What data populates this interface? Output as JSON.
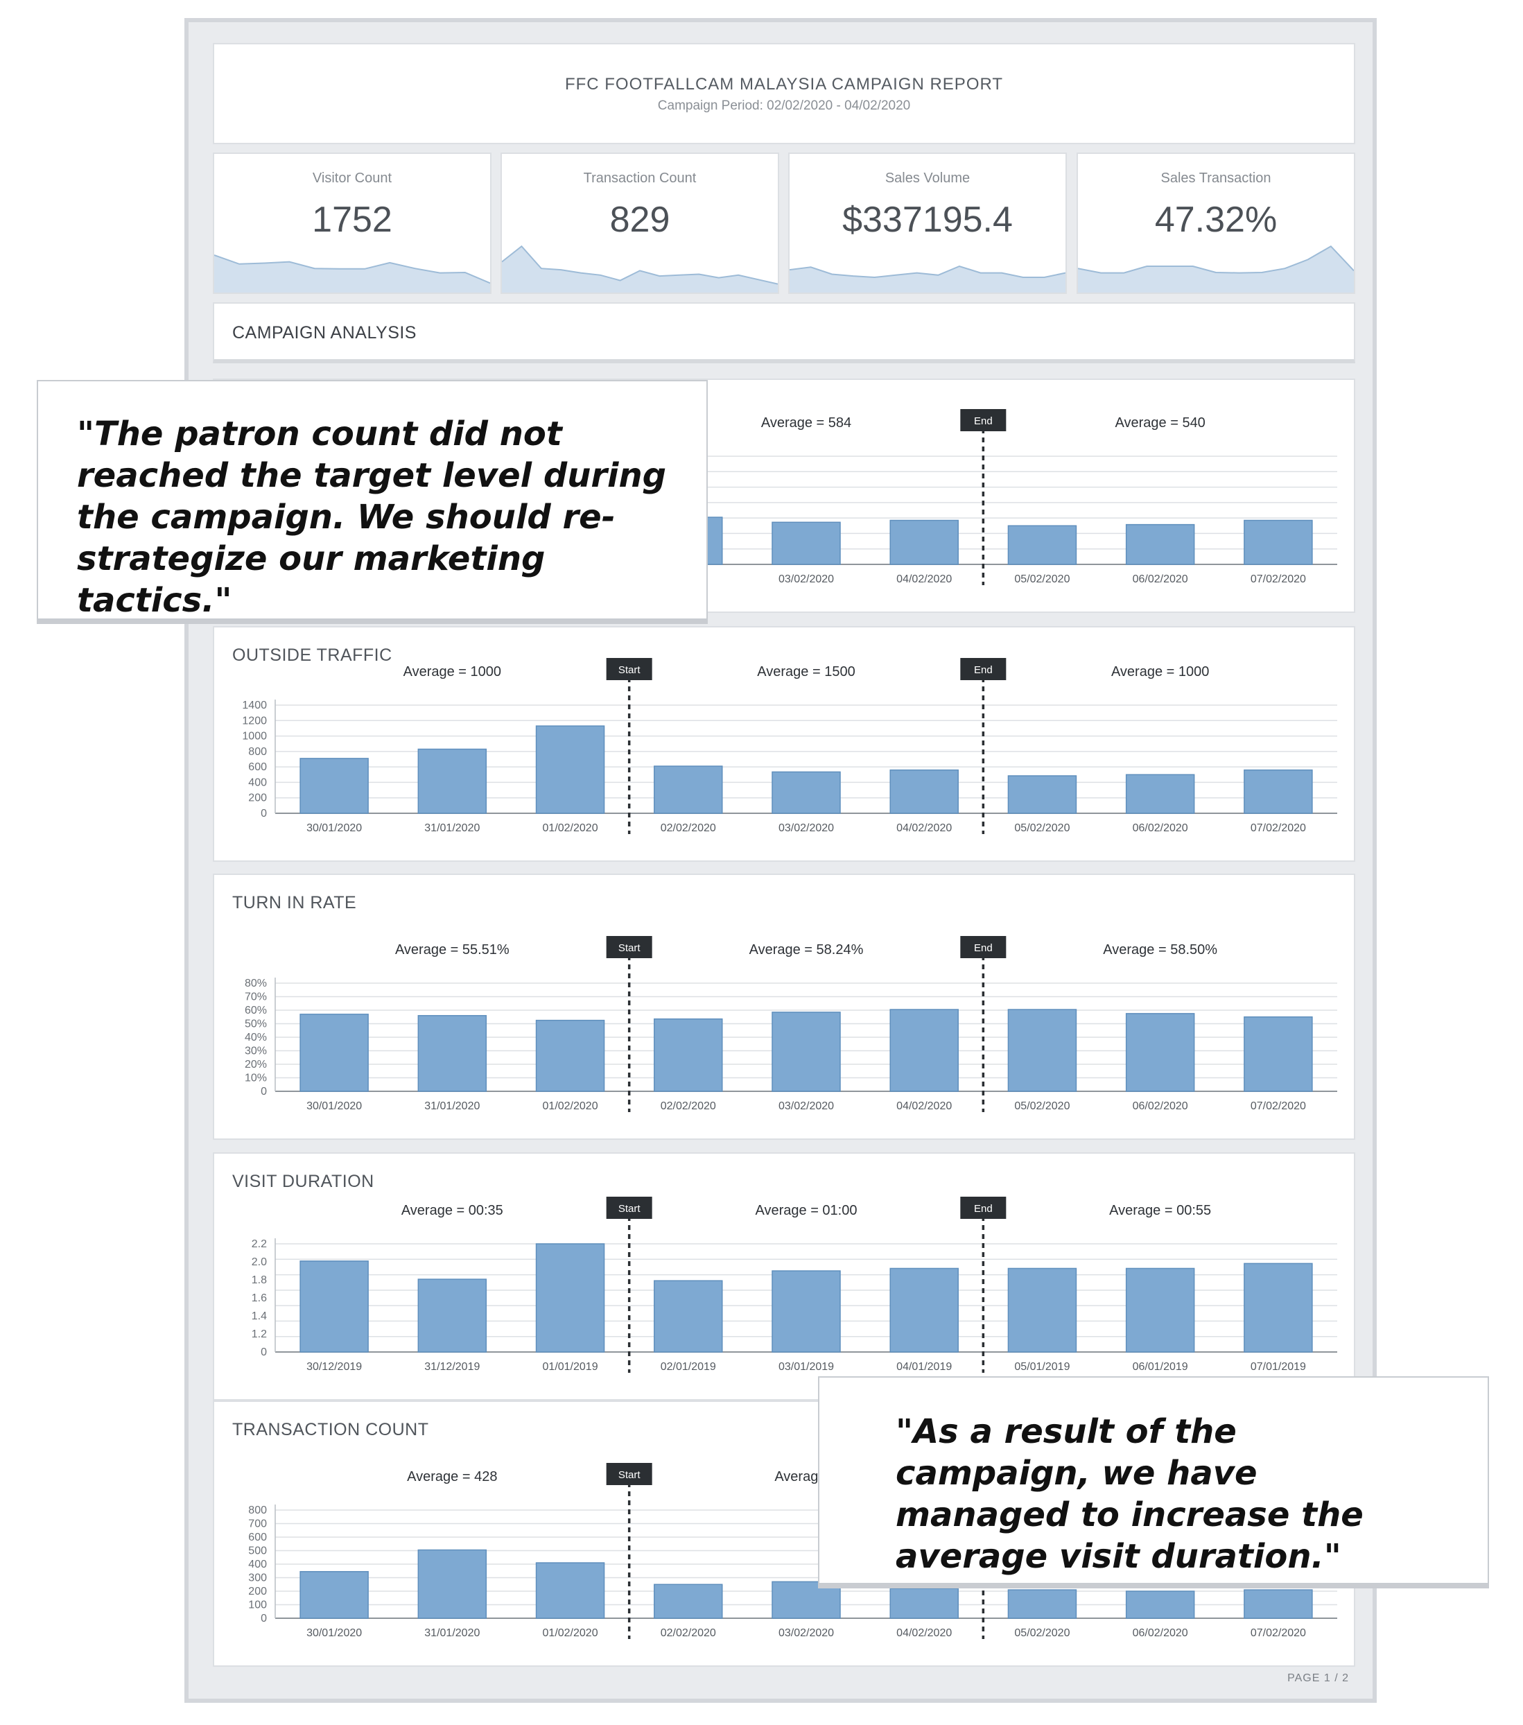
{
  "report": {
    "title": "FFC FOOTFALLCAM MALAYSIA CAMPAIGN REPORT",
    "period": "Campaign Period: 02/02/2020 - 04/02/2020",
    "section_title": "CAMPAIGN ANALYSIS",
    "page": "PAGE 1 / 2"
  },
  "kpis": [
    {
      "label": "Visitor Count",
      "value": "1752",
      "spark": [
        0.75,
        0.55,
        0.57,
        0.6,
        0.45,
        0.44,
        0.44,
        0.58,
        0.45,
        0.35,
        0.36,
        0.12
      ]
    },
    {
      "label": "Transaction Count",
      "value": "829",
      "spark": [
        0.6,
        0.95,
        0.45,
        0.42,
        0.35,
        0.3,
        0.18,
        0.4,
        0.28,
        0.3,
        0.32,
        0.24,
        0.3,
        0.2,
        0.1
      ]
    },
    {
      "label": "Sales Volume",
      "value": "$337195.4",
      "spark": [
        0.42,
        0.48,
        0.32,
        0.28,
        0.25,
        0.3,
        0.35,
        0.3,
        0.5,
        0.35,
        0.35,
        0.25,
        0.25,
        0.35
      ]
    },
    {
      "label": "Sales Transaction",
      "value": "47.32%",
      "spark": [
        0.45,
        0.35,
        0.35,
        0.5,
        0.5,
        0.5,
        0.36,
        0.35,
        0.36,
        0.45,
        0.65,
        0.95,
        0.4
      ]
    }
  ],
  "markers": {
    "start": "Start",
    "end": "End"
  },
  "charts": [
    {
      "title": "",
      "averages": [
        "",
        "Average = 584",
        "Average = 540"
      ],
      "show_start": false,
      "categories": [
        "",
        "",
        "",
        "",
        "03/02/2020",
        "04/02/2020",
        "05/02/2020",
        "06/02/2020",
        "07/02/2020"
      ],
      "ylim": [
        0,
        1400
      ],
      "yticks": [],
      "values": [
        0,
        0,
        0,
        610,
        545,
        570,
        500,
        515,
        570
      ]
    },
    {
      "title": "OUTSIDE TRAFFIC",
      "averages": [
        "Average = 1000",
        "Average = 1500",
        "Average = 1000"
      ],
      "show_start": true,
      "categories": [
        "30/01/2020",
        "31/01/2020",
        "01/02/2020",
        "02/02/2020",
        "03/02/2020",
        "04/02/2020",
        "05/02/2020",
        "06/02/2020",
        "07/02/2020"
      ],
      "ylim": [
        0,
        1400
      ],
      "yticks": [
        "0",
        "200",
        "400",
        "600",
        "800",
        "1000",
        "1200",
        "1400"
      ],
      "values": [
        710,
        830,
        1130,
        610,
        535,
        560,
        485,
        500,
        560
      ]
    },
    {
      "title": "TURN IN RATE",
      "averages": [
        "Average = 55.51%",
        "Average = 58.24%",
        "Average = 58.50%"
      ],
      "show_start": true,
      "categories": [
        "30/01/2020",
        "31/01/2020",
        "01/02/2020",
        "02/02/2020",
        "03/02/2020",
        "04/02/2020",
        "05/02/2020",
        "06/02/2020",
        "07/02/2020"
      ],
      "ylim": [
        0,
        80
      ],
      "yticks": [
        "0",
        "10%",
        "20%",
        "30%",
        "40%",
        "50%",
        "60%",
        "70%",
        "80%"
      ],
      "values": [
        57,
        56,
        52.5,
        53.5,
        58.5,
        60.5,
        60.5,
        57.5,
        55
      ]
    },
    {
      "title": "VISIT DURATION",
      "averages": [
        "Average = 00:35",
        "Average = 01:00",
        "Average = 00:55"
      ],
      "show_start": true,
      "categories": [
        "30/12/2019",
        "31/12/2019",
        "01/01/2019",
        "02/01/2019",
        "03/01/2019",
        "04/01/2019",
        "05/01/2019",
        "06/01/2019",
        "07/01/2019"
      ],
      "ylim": [
        0,
        2.2
      ],
      "yticks": [
        "0",
        "1.2",
        "1.4",
        "1.6",
        "1.8",
        "2.0",
        "2.2"
      ],
      "values": [
        1.85,
        1.48,
        2.2,
        1.45,
        1.65,
        1.7,
        1.7,
        1.7,
        1.8
      ]
    },
    {
      "title": "TRANSACTION COUNT",
      "averages": [
        "Average = 428",
        "Average =",
        ""
      ],
      "show_start": true,
      "categories": [
        "30/01/2020",
        "31/01/2020",
        "01/02/2020",
        "02/02/2020",
        "03/02/2020",
        "04/02/2020",
        "05/02/2020",
        "06/02/2020",
        "07/02/2020"
      ],
      "ylim": [
        0,
        800
      ],
      "yticks": [
        "0",
        "100",
        "200",
        "300",
        "400",
        "500",
        "600",
        "700",
        "800"
      ],
      "values": [
        345,
        505,
        410,
        250,
        270,
        220,
        210,
        200,
        210
      ]
    }
  ],
  "quotes": [
    "\"The patron count did not reached the target level during the campaign. We should re-strategize our marketing tactics.\"",
    "\"As a result of the campaign, we have managed to increase the average visit duration.\""
  ],
  "colors": {
    "bar": "#7ea9d2",
    "bar_edge": "#5f8fbd",
    "spark_fill": "#d2e0ee",
    "spark_line": "#9dbbd7",
    "marker": "#2b2f33"
  }
}
